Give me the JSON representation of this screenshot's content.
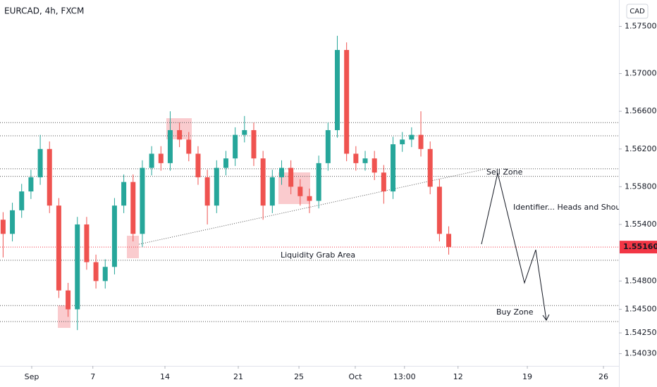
{
  "chart_data": {
    "type": "candlestick",
    "title": "EURCAD, 4h, FXCM",
    "currency": "CAD",
    "xlim": [
      0,
      200
    ],
    "xticks": [
      {
        "value": 10.25,
        "label": "Sep"
      },
      {
        "value": 30,
        "label": "7"
      },
      {
        "value": 53.3,
        "label": "14"
      },
      {
        "value": 77,
        "label": "21"
      },
      {
        "value": 96.6,
        "label": "25"
      },
      {
        "value": 114.8,
        "label": "Oct"
      },
      {
        "value": 130.7,
        "label": "13:00"
      },
      {
        "value": 148,
        "label": "12"
      },
      {
        "value": 170.4,
        "label": "19"
      },
      {
        "value": 195,
        "label": "26"
      }
    ],
    "ylim": [
      1.539,
      1.5778
    ],
    "yticks": [
      {
        "value": 1.575,
        "label": "1.57500"
      },
      {
        "value": 1.57,
        "label": "1.57000"
      },
      {
        "value": 1.566,
        "label": "1.56600"
      },
      {
        "value": 1.562,
        "label": "1.56200"
      },
      {
        "value": 1.558,
        "label": "1.55800"
      },
      {
        "value": 1.554,
        "label": "1.55400"
      },
      {
        "value": 1.548,
        "label": "1.54800"
      },
      {
        "value": 1.545,
        "label": "1.54500"
      },
      {
        "value": 1.5425,
        "label": "1.54250"
      },
      {
        "value": 1.5403,
        "label": "1.54030"
      }
    ],
    "last_price": {
      "value": 1.5516,
      "label": "1.55160",
      "color": "#f23645"
    },
    "up_color": "#26a69a",
    "down_color": "#ef5350",
    "x": [
      1,
      4,
      7,
      10,
      13,
      16,
      19,
      22,
      25,
      28,
      31,
      34,
      37,
      40,
      43,
      46,
      49,
      52,
      55,
      58,
      61,
      64,
      67,
      70,
      73,
      76,
      79,
      82,
      85,
      88,
      91,
      94,
      97,
      100,
      103,
      106,
      109,
      112,
      115,
      118,
      121,
      124,
      127,
      130,
      133,
      136,
      139,
      142,
      145
    ],
    "open": [
      1.5545,
      1.553,
      1.5555,
      1.5575,
      1.559,
      1.562,
      1.556,
      1.547,
      1.545,
      1.554,
      1.55,
      1.548,
      1.5495,
      1.556,
      1.5585,
      1.553,
      1.56,
      1.5615,
      1.5605,
      1.564,
      1.563,
      1.5615,
      1.559,
      1.556,
      1.56,
      1.561,
      1.5635,
      1.564,
      1.561,
      1.556,
      1.559,
      1.56,
      1.558,
      1.557,
      1.5565,
      1.5605,
      1.564,
      1.5725,
      1.5615,
      1.5605,
      1.561,
      1.5595,
      1.5575,
      1.5625,
      1.563,
      1.5635,
      1.562,
      1.558,
      1.553
    ],
    "high": [
      1.5553,
      1.5563,
      1.5583,
      1.5598,
      1.5635,
      1.5628,
      1.5568,
      1.5478,
      1.5548,
      1.5548,
      1.5508,
      1.5503,
      1.5568,
      1.5593,
      1.5593,
      1.5608,
      1.5623,
      1.5623,
      1.566,
      1.5648,
      1.5638,
      1.5623,
      1.5598,
      1.5608,
      1.5618,
      1.5643,
      1.5655,
      1.5648,
      1.5618,
      1.5598,
      1.5608,
      1.5608,
      1.5588,
      1.5578,
      1.5613,
      1.5648,
      1.574,
      1.5733,
      1.5623,
      1.5618,
      1.5618,
      1.5603,
      1.5633,
      1.5638,
      1.5643,
      1.566,
      1.5628,
      1.5588,
      1.5538
    ],
    "low": [
      1.5505,
      1.5522,
      1.5547,
      1.5567,
      1.5582,
      1.5552,
      1.5462,
      1.5442,
      1.5428,
      1.5492,
      1.5472,
      1.5472,
      1.5487,
      1.5552,
      1.5522,
      1.5516,
      1.5592,
      1.5597,
      1.5597,
      1.5622,
      1.5607,
      1.5582,
      1.554,
      1.5552,
      1.5592,
      1.5602,
      1.5627,
      1.5602,
      1.5545,
      1.5552,
      1.5582,
      1.5572,
      1.556,
      1.5552,
      1.5557,
      1.5597,
      1.5632,
      1.5607,
      1.5597,
      1.5597,
      1.5587,
      1.5562,
      1.5567,
      1.5617,
      1.5622,
      1.5612,
      1.5572,
      1.5522,
      1.5508
    ],
    "close": [
      1.553,
      1.5555,
      1.5575,
      1.559,
      1.562,
      1.556,
      1.547,
      1.545,
      1.554,
      1.55,
      1.548,
      1.5495,
      1.556,
      1.5585,
      1.553,
      1.56,
      1.5615,
      1.5605,
      1.564,
      1.563,
      1.5615,
      1.559,
      1.556,
      1.56,
      1.561,
      1.5635,
      1.564,
      1.561,
      1.556,
      1.559,
      1.56,
      1.558,
      1.557,
      1.5565,
      1.5605,
      1.564,
      1.5725,
      1.5615,
      1.5605,
      1.561,
      1.5595,
      1.5575,
      1.5625,
      1.563,
      1.5635,
      1.562,
      1.558,
      1.553,
      1.5516
    ],
    "levels": [
      1.5648,
      1.5634,
      1.5599,
      1.5591,
      1.5502,
      1.5454,
      1.5437
    ],
    "trendline": {
      "x": [
        44.9,
        157.2
      ],
      "y": [
        1.5519,
        1.5599
      ]
    },
    "annotations": [
      "Sell Zone",
      "Identifier... Heads and Should",
      "Liquidity Grab Area",
      "Buy Zone"
    ]
  }
}
